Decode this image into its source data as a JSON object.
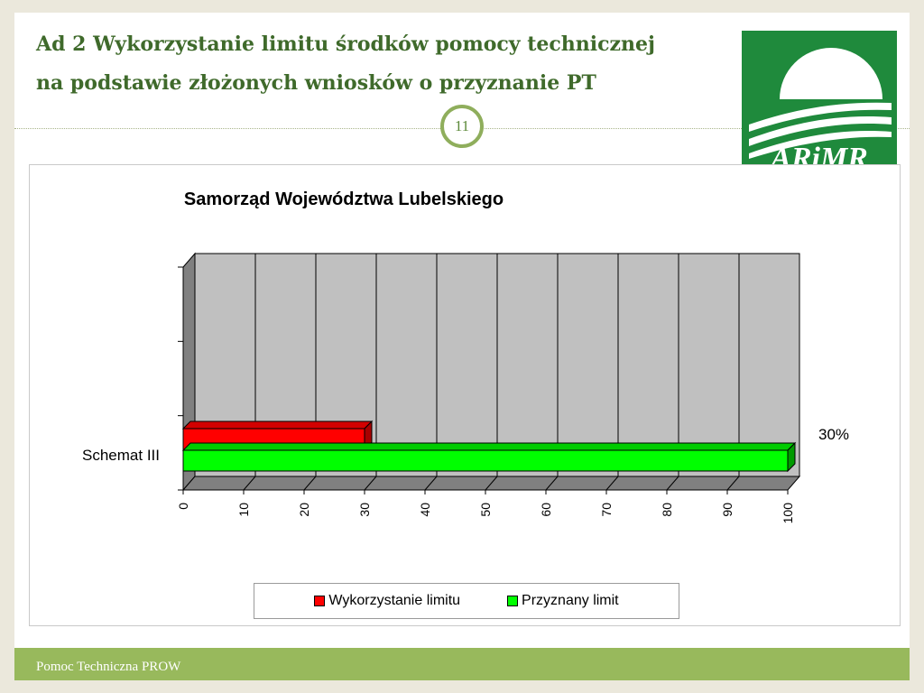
{
  "title": {
    "line1": "Ad 2 Wykorzystanie limitu środków pomocy technicznej",
    "line2": "na podstawie złożonych wniosków o przyznanie PT"
  },
  "page_number": "11",
  "logo": {
    "text": "ARiMR",
    "color": "#1f8a3c"
  },
  "footer": {
    "text": "Pomoc Techniczna PROW"
  },
  "chart_data": {
    "type": "bar",
    "orientation": "horizontal",
    "style": "3d",
    "title": "Samorząd Województwa Lubelskiego",
    "categories": [
      "Schemat III"
    ],
    "series": [
      {
        "name": "Wykorzystanie limitu",
        "values": [
          30
        ],
        "color": "#ff0000"
      },
      {
        "name": "Przyznany limit",
        "values": [
          100
        ],
        "color": "#00ff00"
      }
    ],
    "data_label": "30%",
    "xlim": [
      0,
      100
    ],
    "xticks": [
      0,
      10,
      20,
      30,
      40,
      50,
      60,
      70,
      80,
      90,
      100
    ],
    "grid": true,
    "legend_position": "bottom"
  }
}
